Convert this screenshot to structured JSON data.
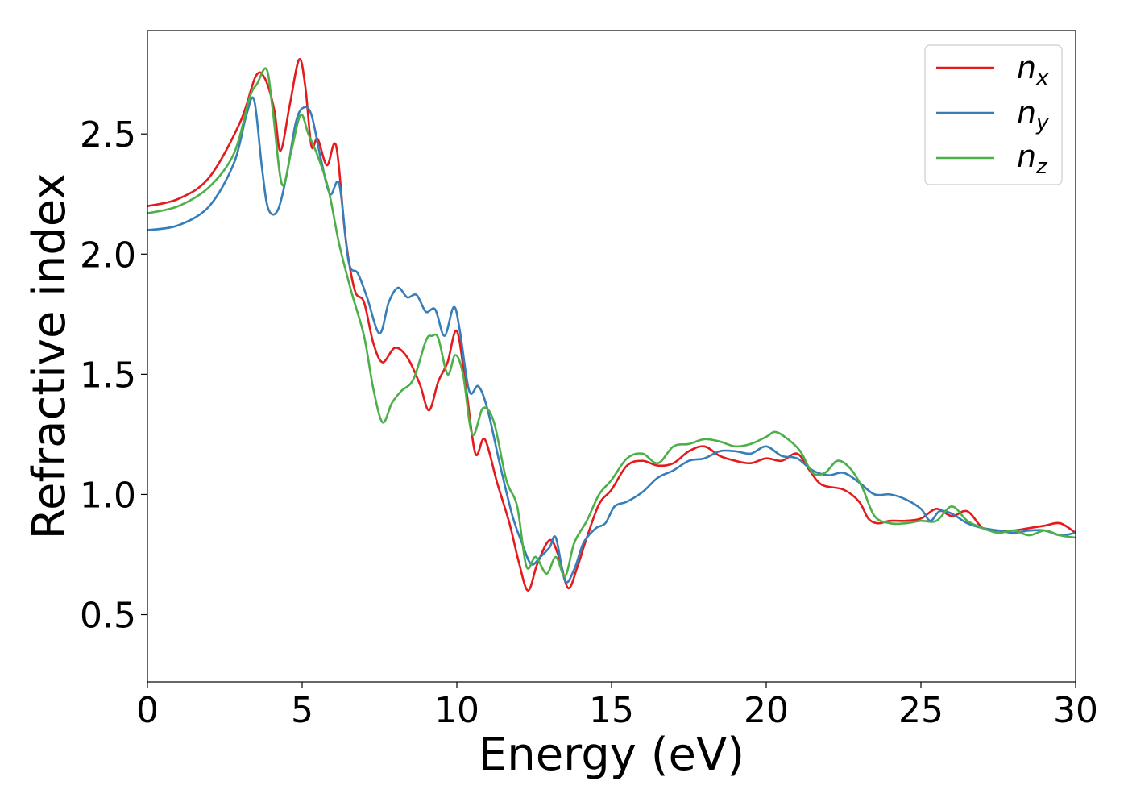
{
  "chart_data": {
    "type": "line",
    "xlabel": "Energy (eV)",
    "ylabel": "Refractive index",
    "xlim": [
      0,
      30
    ],
    "ylim": [
      0.22,
      2.93
    ],
    "xticks": [
      0,
      5,
      10,
      15,
      20,
      25,
      30
    ],
    "yticks": [
      0.5,
      1.0,
      1.5,
      2.0,
      2.5
    ],
    "xtick_labels": [
      "0",
      "5",
      "10",
      "15",
      "20",
      "25",
      "30"
    ],
    "ytick_labels": [
      "0.5",
      "1.0",
      "1.5",
      "2.0",
      "2.5"
    ],
    "grid": false,
    "legend_position": "top-right",
    "series": [
      {
        "name": "n",
        "subscript": "x",
        "color": "#e41a1c",
        "points": [
          [
            0,
            2.2
          ],
          [
            1,
            2.23
          ],
          [
            2,
            2.32
          ],
          [
            3,
            2.55
          ],
          [
            3.5,
            2.74
          ],
          [
            3.8,
            2.73
          ],
          [
            4.1,
            2.6
          ],
          [
            4.3,
            2.43
          ],
          [
            4.6,
            2.62
          ],
          [
            4.9,
            2.81
          ],
          [
            5.1,
            2.7
          ],
          [
            5.3,
            2.45
          ],
          [
            5.5,
            2.48
          ],
          [
            5.8,
            2.37
          ],
          [
            6.1,
            2.45
          ],
          [
            6.4,
            2.07
          ],
          [
            6.7,
            1.85
          ],
          [
            7,
            1.8
          ],
          [
            7.3,
            1.63
          ],
          [
            7.6,
            1.55
          ],
          [
            8,
            1.61
          ],
          [
            8.4,
            1.57
          ],
          [
            8.8,
            1.46
          ],
          [
            9.1,
            1.35
          ],
          [
            9.4,
            1.47
          ],
          [
            9.7,
            1.55
          ],
          [
            10,
            1.68
          ],
          [
            10.3,
            1.44
          ],
          [
            10.6,
            1.17
          ],
          [
            10.9,
            1.23
          ],
          [
            11.3,
            1.05
          ],
          [
            11.7,
            0.88
          ],
          [
            12,
            0.72
          ],
          [
            12.3,
            0.6
          ],
          [
            12.6,
            0.71
          ],
          [
            13,
            0.81
          ],
          [
            13.3,
            0.74
          ],
          [
            13.6,
            0.61
          ],
          [
            13.9,
            0.7
          ],
          [
            14.2,
            0.82
          ],
          [
            14.6,
            0.96
          ],
          [
            15,
            1.02
          ],
          [
            15.5,
            1.12
          ],
          [
            16,
            1.14
          ],
          [
            16.5,
            1.12
          ],
          [
            17,
            1.13
          ],
          [
            17.5,
            1.18
          ],
          [
            18,
            1.2
          ],
          [
            18.5,
            1.16
          ],
          [
            19,
            1.14
          ],
          [
            19.5,
            1.13
          ],
          [
            20,
            1.15
          ],
          [
            20.5,
            1.14
          ],
          [
            21,
            1.17
          ],
          [
            21.4,
            1.1
          ],
          [
            21.8,
            1.04
          ],
          [
            22.5,
            1.02
          ],
          [
            23,
            0.97
          ],
          [
            23.3,
            0.9
          ],
          [
            23.6,
            0.88
          ],
          [
            24,
            0.89
          ],
          [
            24.5,
            0.89
          ],
          [
            25,
            0.9
          ],
          [
            25.5,
            0.94
          ],
          [
            26,
            0.91
          ],
          [
            26.5,
            0.93
          ],
          [
            27,
            0.86
          ],
          [
            27.5,
            0.85
          ],
          [
            28,
            0.85
          ],
          [
            28.5,
            0.86
          ],
          [
            29,
            0.87
          ],
          [
            29.5,
            0.88
          ],
          [
            30,
            0.84
          ]
        ]
      },
      {
        "name": "n",
        "subscript": "y",
        "color": "#377eb8",
        "points": [
          [
            0,
            2.1
          ],
          [
            1,
            2.12
          ],
          [
            2,
            2.2
          ],
          [
            2.8,
            2.38
          ],
          [
            3.2,
            2.58
          ],
          [
            3.45,
            2.64
          ],
          [
            3.7,
            2.36
          ],
          [
            3.9,
            2.19
          ],
          [
            4.2,
            2.18
          ],
          [
            4.5,
            2.33
          ],
          [
            4.8,
            2.55
          ],
          [
            5.05,
            2.61
          ],
          [
            5.3,
            2.58
          ],
          [
            5.6,
            2.4
          ],
          [
            5.9,
            2.25
          ],
          [
            6.2,
            2.29
          ],
          [
            6.5,
            1.97
          ],
          [
            6.8,
            1.92
          ],
          [
            7.1,
            1.82
          ],
          [
            7.5,
            1.67
          ],
          [
            7.8,
            1.8
          ],
          [
            8.1,
            1.86
          ],
          [
            8.4,
            1.82
          ],
          [
            8.7,
            1.83
          ],
          [
            9,
            1.76
          ],
          [
            9.3,
            1.77
          ],
          [
            9.6,
            1.66
          ],
          [
            9.9,
            1.78
          ],
          [
            10.1,
            1.68
          ],
          [
            10.4,
            1.43
          ],
          [
            10.7,
            1.45
          ],
          [
            11,
            1.35
          ],
          [
            11.4,
            1.12
          ],
          [
            11.8,
            0.91
          ],
          [
            12.1,
            0.8
          ],
          [
            12.4,
            0.71
          ],
          [
            12.7,
            0.74
          ],
          [
            13,
            0.78
          ],
          [
            13.2,
            0.82
          ],
          [
            13.5,
            0.64
          ],
          [
            13.8,
            0.69
          ],
          [
            14.1,
            0.8
          ],
          [
            14.5,
            0.86
          ],
          [
            14.8,
            0.88
          ],
          [
            15.1,
            0.95
          ],
          [
            15.5,
            0.97
          ],
          [
            16,
            1.01
          ],
          [
            16.5,
            1.07
          ],
          [
            17,
            1.1
          ],
          [
            17.5,
            1.14
          ],
          [
            18,
            1.15
          ],
          [
            18.5,
            1.18
          ],
          [
            19,
            1.18
          ],
          [
            19.5,
            1.17
          ],
          [
            20,
            1.2
          ],
          [
            20.5,
            1.16
          ],
          [
            21,
            1.15
          ],
          [
            21.5,
            1.1
          ],
          [
            22,
            1.08
          ],
          [
            22.5,
            1.09
          ],
          [
            23,
            1.05
          ],
          [
            23.5,
            1.0
          ],
          [
            24,
            1.0
          ],
          [
            24.5,
            0.98
          ],
          [
            25,
            0.94
          ],
          [
            25.3,
            0.89
          ],
          [
            25.6,
            0.93
          ],
          [
            26,
            0.92
          ],
          [
            26.5,
            0.88
          ],
          [
            27,
            0.86
          ],
          [
            27.5,
            0.85
          ],
          [
            28,
            0.84
          ],
          [
            28.5,
            0.85
          ],
          [
            29,
            0.85
          ],
          [
            29.5,
            0.83
          ],
          [
            30,
            0.84
          ]
        ]
      },
      {
        "name": "n",
        "subscript": "z",
        "color": "#4daf4a",
        "points": [
          [
            0,
            2.17
          ],
          [
            1,
            2.2
          ],
          [
            2,
            2.28
          ],
          [
            2.8,
            2.42
          ],
          [
            3.3,
            2.65
          ],
          [
            3.55,
            2.71
          ],
          [
            3.85,
            2.77
          ],
          [
            4.05,
            2.6
          ],
          [
            4.35,
            2.29
          ],
          [
            4.65,
            2.43
          ],
          [
            4.95,
            2.58
          ],
          [
            5.2,
            2.5
          ],
          [
            5.5,
            2.41
          ],
          [
            5.85,
            2.27
          ],
          [
            6.2,
            2.04
          ],
          [
            6.6,
            1.84
          ],
          [
            7,
            1.66
          ],
          [
            7.3,
            1.44
          ],
          [
            7.6,
            1.3
          ],
          [
            7.9,
            1.38
          ],
          [
            8.2,
            1.43
          ],
          [
            8.6,
            1.48
          ],
          [
            9,
            1.64
          ],
          [
            9.2,
            1.66
          ],
          [
            9.4,
            1.65
          ],
          [
            9.7,
            1.5
          ],
          [
            9.95,
            1.58
          ],
          [
            10.2,
            1.5
          ],
          [
            10.5,
            1.25
          ],
          [
            10.85,
            1.36
          ],
          [
            11.2,
            1.3
          ],
          [
            11.6,
            1.06
          ],
          [
            11.95,
            0.95
          ],
          [
            12.25,
            0.7
          ],
          [
            12.55,
            0.74
          ],
          [
            12.9,
            0.67
          ],
          [
            13.2,
            0.74
          ],
          [
            13.5,
            0.66
          ],
          [
            13.8,
            0.8
          ],
          [
            14.2,
            0.89
          ],
          [
            14.6,
            1.0
          ],
          [
            15,
            1.06
          ],
          [
            15.5,
            1.15
          ],
          [
            16,
            1.17
          ],
          [
            16.5,
            1.13
          ],
          [
            17,
            1.2
          ],
          [
            17.5,
            1.21
          ],
          [
            18,
            1.23
          ],
          [
            18.5,
            1.22
          ],
          [
            19,
            1.2
          ],
          [
            19.5,
            1.21
          ],
          [
            20,
            1.24
          ],
          [
            20.3,
            1.26
          ],
          [
            20.7,
            1.23
          ],
          [
            21.1,
            1.18
          ],
          [
            21.5,
            1.09
          ],
          [
            21.9,
            1.09
          ],
          [
            22.3,
            1.14
          ],
          [
            22.7,
            1.11
          ],
          [
            23.1,
            1.03
          ],
          [
            23.5,
            0.91
          ],
          [
            24,
            0.88
          ],
          [
            24.5,
            0.88
          ],
          [
            25,
            0.89
          ],
          [
            25.5,
            0.89
          ],
          [
            26,
            0.95
          ],
          [
            26.5,
            0.89
          ],
          [
            27,
            0.86
          ],
          [
            27.5,
            0.84
          ],
          [
            28,
            0.85
          ],
          [
            28.5,
            0.83
          ],
          [
            29,
            0.85
          ],
          [
            29.5,
            0.83
          ],
          [
            30,
            0.82
          ]
        ]
      }
    ]
  }
}
